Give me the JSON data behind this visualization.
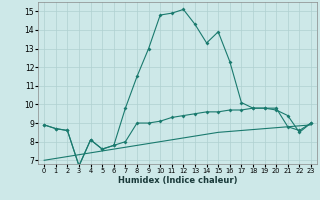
{
  "xlabel": "Humidex (Indice chaleur)",
  "x": [
    0,
    1,
    2,
    3,
    4,
    5,
    6,
    7,
    8,
    9,
    10,
    11,
    12,
    13,
    14,
    15,
    16,
    17,
    18,
    19,
    20,
    21,
    22,
    23
  ],
  "line1": [
    8.9,
    8.7,
    8.6,
    6.7,
    8.1,
    7.6,
    7.8,
    8.0,
    9.0,
    9.0,
    9.1,
    9.3,
    9.4,
    9.5,
    9.6,
    9.6,
    9.7,
    9.7,
    9.8,
    9.8,
    9.8,
    8.8,
    8.6,
    9.0
  ],
  "line2": [
    8.9,
    8.7,
    8.6,
    6.7,
    8.1,
    7.6,
    7.8,
    9.8,
    11.5,
    13.0,
    14.8,
    14.9,
    15.1,
    14.3,
    13.3,
    13.9,
    12.3,
    10.1,
    9.8,
    9.8,
    9.7,
    9.4,
    8.5,
    9.0
  ],
  "line3": [
    7.0,
    7.1,
    7.2,
    7.3,
    7.4,
    7.5,
    7.6,
    7.7,
    7.8,
    7.9,
    8.0,
    8.1,
    8.2,
    8.3,
    8.4,
    8.5,
    8.55,
    8.6,
    8.65,
    8.7,
    8.75,
    8.8,
    8.85,
    8.9
  ],
  "color": "#1a7a6e",
  "bg_color": "#cde8e8",
  "grid_color": "#b0d0d0",
  "ylim": [
    6.8,
    15.5
  ],
  "xlim": [
    -0.5,
    23.5
  ],
  "yticks": [
    7,
    8,
    9,
    10,
    11,
    12,
    13,
    14,
    15
  ],
  "xticks": [
    0,
    1,
    2,
    3,
    4,
    5,
    6,
    7,
    8,
    9,
    10,
    11,
    12,
    13,
    14,
    15,
    16,
    17,
    18,
    19,
    20,
    21,
    22,
    23
  ]
}
